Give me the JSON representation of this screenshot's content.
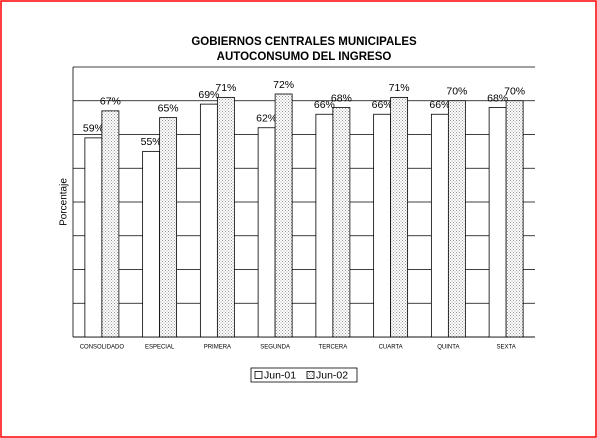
{
  "chart_data": {
    "type": "bar",
    "title": [
      "GOBIERNOS CENTRALES MUNICIPALES",
      "AUTOCONSUMO DEL INGRESO"
    ],
    "y_label": "Porcentaje",
    "categories": [
      "CONSOLIDADO",
      "ESPECIAL",
      "PRIMERA",
      "SEGUNDA",
      "TERCERA",
      "CUARTA",
      "QUINTA",
      "SEXTA"
    ],
    "series": [
      {
        "name": "Jun-01",
        "color": "#ffffff",
        "pattern": "none",
        "values": [
          59,
          55,
          69,
          62,
          66,
          66,
          66,
          68
        ],
        "value_labels": [
          "59%",
          "55%",
          "69%",
          "62%",
          "66%",
          "66%",
          "66%",
          "68%"
        ]
      },
      {
        "name": "Jun-02",
        "color": "#ffffff",
        "pattern": "dotted",
        "values": [
          67,
          65,
          71,
          72,
          68,
          71,
          70,
          70
        ],
        "value_labels": [
          "67%",
          "65%",
          "71%",
          "72%",
          "68%",
          "71%",
          "70%",
          "70%"
        ]
      }
    ],
    "ylim": [
      0,
      80
    ],
    "yticks": [
      0,
      10,
      20,
      30,
      40,
      50,
      60,
      70,
      80
    ],
    "grid": true,
    "legend": "bottom"
  }
}
